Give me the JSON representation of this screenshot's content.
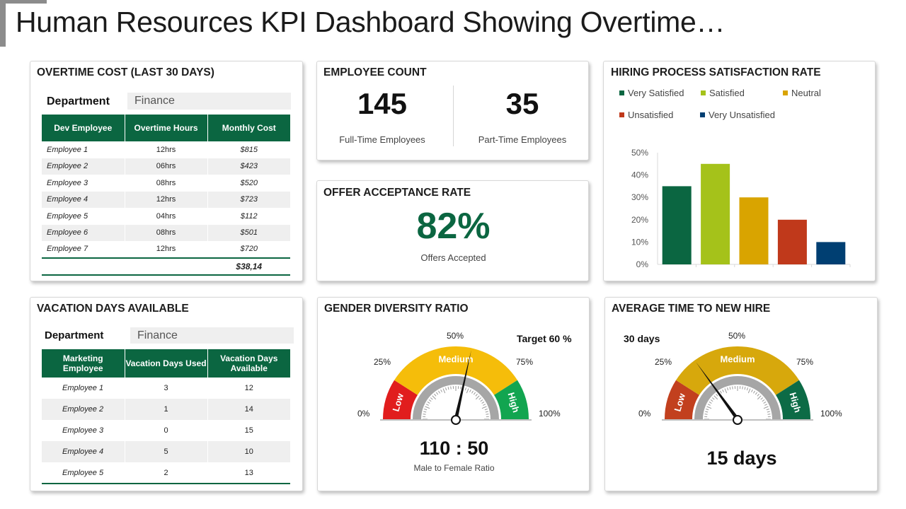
{
  "page_title": "Human Resources KPI Dashboard Showing Overtime…",
  "overtime": {
    "title": "OVERTIME COST (LAST 30 DAYS)",
    "dept_label": "Department",
    "dept_value": "Finance",
    "headers": [
      "Dev Employee",
      "Overtime Hours",
      "Monthly Cost"
    ],
    "rows": [
      {
        "name": "Employee 1",
        "hours": "12hrs",
        "cost": "$815"
      },
      {
        "name": "Employee 2",
        "hours": "06hrs",
        "cost": "$423"
      },
      {
        "name": "Employee 3",
        "hours": "08hrs",
        "cost": "$520"
      },
      {
        "name": "Employee 4",
        "hours": "12hrs",
        "cost": "$723"
      },
      {
        "name": "Employee 5",
        "hours": "04hrs",
        "cost": "$112"
      },
      {
        "name": "Employee 6",
        "hours": "08hrs",
        "cost": "$501"
      },
      {
        "name": "Employee 7",
        "hours": "12hrs",
        "cost": "$720"
      }
    ],
    "total": "$38,14"
  },
  "employee_count": {
    "title": "EMPLOYEE COUNT",
    "full_time_value": "145",
    "full_time_label": "Full-Time Employees",
    "part_time_value": "35",
    "part_time_label": "Part-Time Employees"
  },
  "offer": {
    "title": "OFFER ACCEPTANCE RATE",
    "value": "82%",
    "label": "Offers Accepted"
  },
  "hiring": {
    "title": "HIRING PROCESS SATISFACTION RATE"
  },
  "vacation": {
    "title": "VACATION DAYS AVAILABLE",
    "dept_label": "Department",
    "dept_value": "Finance",
    "headers": [
      "Marketing Employee",
      "Vacation Days Used",
      "Vacation Days Available"
    ],
    "rows": [
      {
        "name": "Employee 1",
        "used": "3",
        "available": "12"
      },
      {
        "name": "Employee 2",
        "used": "1",
        "available": "14"
      },
      {
        "name": "Employee 3",
        "used": "0",
        "available": "15"
      },
      {
        "name": "Employee 4",
        "used": "5",
        "available": "10"
      },
      {
        "name": "Employee 5",
        "used": "2",
        "available": "13"
      }
    ]
  },
  "gender": {
    "title": "GENDER DIVERSITY RATIO",
    "target": "Target 60 %",
    "tick_0": "0%",
    "tick_25": "25%",
    "tick_50": "50%",
    "tick_75": "75%",
    "tick_100": "100%",
    "band_low": "Low",
    "band_medium": "Medium",
    "band_high": "High",
    "needle_fraction": 0.57,
    "ratio": "110 : 50",
    "ratio_label": "Male to Female Ratio"
  },
  "new_hire": {
    "title": "AVERAGE TIME TO NEW HIRE",
    "marker": "30 days",
    "tick_0": "0%",
    "tick_25": "25%",
    "tick_50": "50%",
    "tick_75": "75%",
    "tick_100": "100%",
    "band_low": "Low",
    "band_medium": "Medium",
    "band_high": "High",
    "needle_fraction": 0.3,
    "days": "15 days"
  },
  "colors": {
    "dark_green": "#0b6641",
    "lime": "#a5c21a",
    "gold": "#d9a400",
    "red": "#c0391b",
    "navy": "#003f72",
    "gauge_red": "#e11d1d",
    "gauge_yellow": "#f5bd0a",
    "gauge_green": "#12a550",
    "gauge2_rust": "#c2401e",
    "gauge2_gold": "#d7a80c",
    "gauge2_green": "#0c6b46"
  },
  "chart_data": {
    "type": "bar",
    "title": "HIRING PROCESS SATISFACTION RATE",
    "categories": [
      "Very Satisfied",
      "Satisfied",
      "Neutral",
      "Unsatisfied",
      "Very Unsatisfied"
    ],
    "values": [
      35,
      45,
      30,
      20,
      10
    ],
    "colors": [
      "#0b6641",
      "#a5c21a",
      "#d9a400",
      "#c0391b",
      "#003f72"
    ],
    "yticks": [
      "0%",
      "10%",
      "20%",
      "30%",
      "40%",
      "50%"
    ],
    "ylim": [
      0,
      50
    ],
    "grid": false,
    "legend": "top"
  }
}
